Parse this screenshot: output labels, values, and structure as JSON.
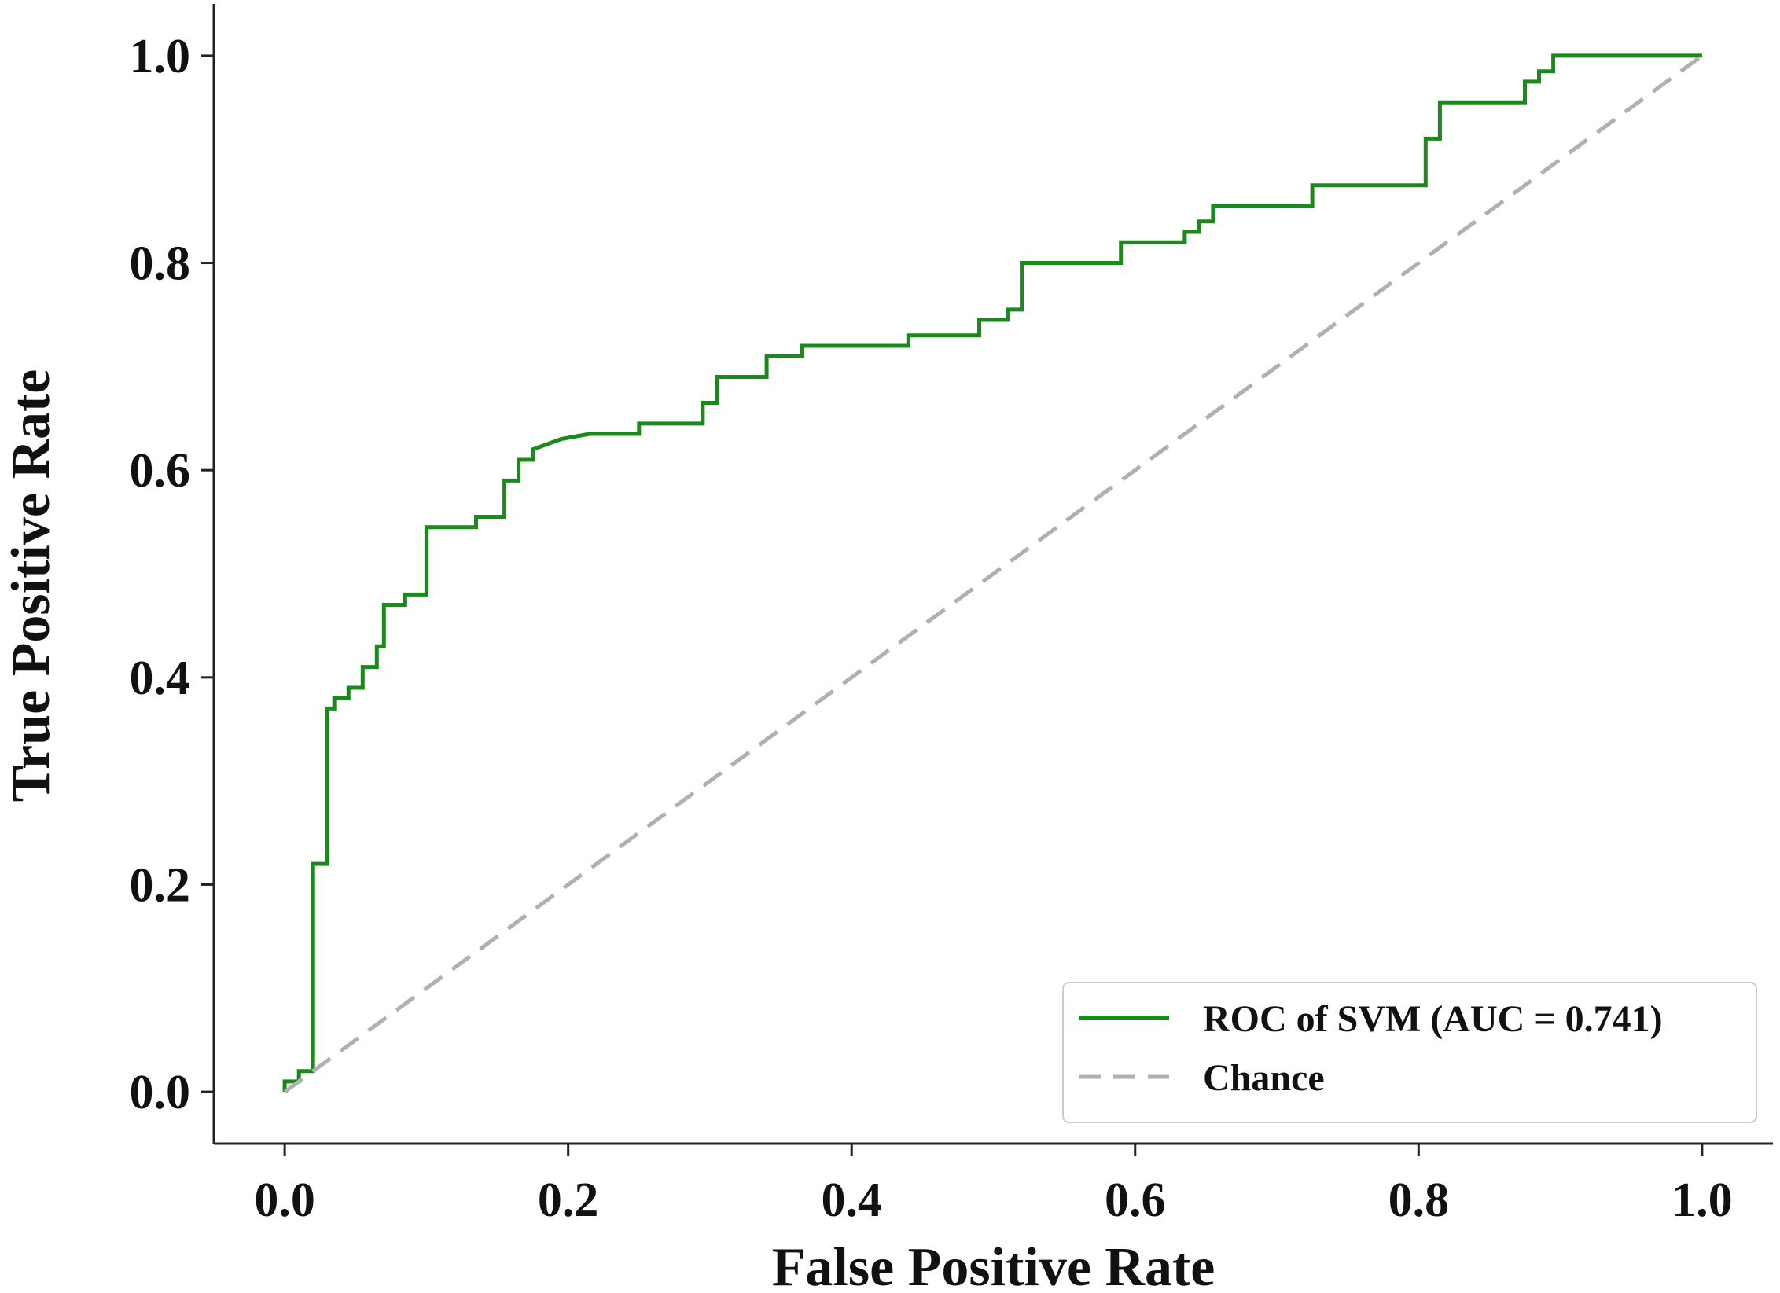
{
  "chart_data": {
    "type": "line",
    "title": "",
    "xlabel": "False Positive Rate",
    "ylabel": "True Positive Rate",
    "xlim": [
      -0.05,
      1.05
    ],
    "ylim": [
      -0.05,
      1.05
    ],
    "xticks": [
      0.0,
      0.2,
      0.4,
      0.6,
      0.8,
      1.0
    ],
    "yticks": [
      0.0,
      0.2,
      0.4,
      0.6,
      0.8,
      1.0
    ],
    "xtick_labels": [
      "0.0",
      "0.2",
      "0.4",
      "0.6",
      "0.8",
      "1.0"
    ],
    "ytick_labels": [
      "0.0",
      "0.2",
      "0.4",
      "0.6",
      "0.8",
      "1.0"
    ],
    "legend_position": "bottom-right",
    "colors": {
      "roc": "#1a8a1a",
      "chance": "#b0b0b0"
    },
    "series": [
      {
        "name": "ROC of SVM (AUC = 0.741)",
        "style": "solid",
        "x": [
          0.0,
          0.0,
          0.01,
          0.01,
          0.02,
          0.02,
          0.03,
          0.03,
          0.035,
          0.035,
          0.045,
          0.045,
          0.055,
          0.055,
          0.065,
          0.065,
          0.07,
          0.07,
          0.085,
          0.085,
          0.1,
          0.1,
          0.135,
          0.135,
          0.155,
          0.155,
          0.165,
          0.165,
          0.175,
          0.175,
          0.185,
          0.195,
          0.215,
          0.25,
          0.25,
          0.295,
          0.295,
          0.305,
          0.305,
          0.34,
          0.34,
          0.365,
          0.365,
          0.44,
          0.44,
          0.49,
          0.49,
          0.51,
          0.51,
          0.52,
          0.52,
          0.59,
          0.59,
          0.635,
          0.635,
          0.645,
          0.645,
          0.655,
          0.655,
          0.665,
          0.665,
          0.725,
          0.725,
          0.805,
          0.805,
          0.815,
          0.815,
          0.875,
          0.875,
          0.885,
          0.885,
          0.895,
          0.895,
          1.0
        ],
        "y": [
          0.0,
          0.01,
          0.01,
          0.02,
          0.02,
          0.22,
          0.22,
          0.37,
          0.37,
          0.38,
          0.38,
          0.39,
          0.39,
          0.41,
          0.41,
          0.43,
          0.43,
          0.47,
          0.47,
          0.48,
          0.48,
          0.545,
          0.545,
          0.555,
          0.555,
          0.59,
          0.59,
          0.61,
          0.61,
          0.62,
          0.625,
          0.63,
          0.635,
          0.635,
          0.645,
          0.645,
          0.665,
          0.665,
          0.69,
          0.69,
          0.71,
          0.71,
          0.72,
          0.72,
          0.73,
          0.73,
          0.745,
          0.745,
          0.755,
          0.755,
          0.8,
          0.8,
          0.82,
          0.82,
          0.83,
          0.83,
          0.84,
          0.84,
          0.855,
          0.855,
          0.855,
          0.855,
          0.875,
          0.875,
          0.92,
          0.92,
          0.955,
          0.955,
          0.975,
          0.975,
          0.985,
          0.985,
          1.0,
          1.0
        ]
      },
      {
        "name": "Chance",
        "style": "dashed",
        "x": [
          0.0,
          1.0
        ],
        "y": [
          0.0,
          1.0
        ]
      }
    ]
  }
}
